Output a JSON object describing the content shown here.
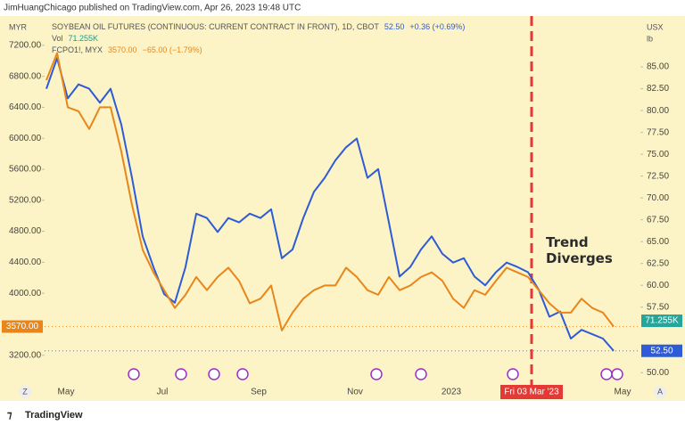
{
  "header": {
    "publisher": "JimHuangChicago published on TradingView.com, Apr 26, 2023 19:48 UTC"
  },
  "footer": {
    "brand": "TradingView"
  },
  "chart_data": {
    "type": "line",
    "y_unit": "MYR",
    "y2_unit": "USX",
    "y2_unit_sub": "lb",
    "volume_label": "Vol",
    "volume_value": "71.255K",
    "annotation": "Trend Diverges",
    "event_label": "Fri 03 Mar '23",
    "buttons": [
      "Z",
      "A"
    ],
    "grid": false,
    "categories": [
      null,
      "May",
      null,
      null,
      null,
      null,
      null,
      null,
      null,
      null,
      "Jul",
      null,
      null,
      null,
      null,
      null,
      null,
      null,
      null,
      "Sep",
      null,
      null,
      null,
      null,
      null,
      null,
      null,
      null,
      "Nov",
      null,
      null,
      null,
      null,
      null,
      null,
      null,
      null,
      "2023",
      null,
      null,
      null,
      null,
      null,
      null,
      null,
      null,
      null,
      null,
      null,
      null,
      null,
      null,
      null,
      "May"
    ],
    "series": [
      {
        "name": "SOYBEAN OIL FUTURES (CONTINUOUS: CURRENT CONTRACT IN FRONT), 1D, CBOT",
        "legend_value": "52.50",
        "legend_change": "+0.36 (+0.69%)",
        "color": "#2e5bd6",
        "axis": "y2",
        "values": [
          82.5,
          86.0,
          81.4,
          83.0,
          82.5,
          80.9,
          82.5,
          78.4,
          72.3,
          65.6,
          62.1,
          59.0,
          58.0,
          62.1,
          68.2,
          67.7,
          66.1,
          67.7,
          67.2,
          68.2,
          67.7,
          68.7,
          63.1,
          64.1,
          67.7,
          70.7,
          72.3,
          74.3,
          75.8,
          76.8,
          72.3,
          73.3,
          67.2,
          61.0,
          62.1,
          64.1,
          65.6,
          63.6,
          62.6,
          63.1,
          61.0,
          60.0,
          61.5,
          62.6,
          62.1,
          61.5,
          59.5,
          56.4,
          57.0,
          53.9,
          54.9,
          54.4,
          53.9,
          52.5
        ]
      },
      {
        "name": "FCPO1!, MYX",
        "legend_value": "3570.00",
        "legend_change": "−65.00 (−1.79%)",
        "color": "#e8861c",
        "axis": "y",
        "values": [
          6750,
          7100,
          6400,
          6350,
          6120,
          6400,
          6400,
          5830,
          5140,
          4560,
          4270,
          4040,
          3810,
          3980,
          4210,
          4040,
          4210,
          4330,
          4160,
          3870,
          3930,
          4100,
          3520,
          3750,
          3930,
          4040,
          4100,
          4100,
          4330,
          4210,
          4040,
          3980,
          4210,
          4040,
          4100,
          4210,
          4270,
          4160,
          3930,
          3810,
          4040,
          3980,
          4160,
          4330,
          4270,
          4210,
          4040,
          3870,
          3750,
          3750,
          3930,
          3810,
          3750,
          3570
        ]
      }
    ],
    "ylim": [
      2840,
      7440
    ],
    "yticks": [
      {
        "value": 3200,
        "label": "3200.00"
      },
      {
        "value": 4000,
        "label": "4000.00"
      },
      {
        "value": 4400,
        "label": "4400.00"
      },
      {
        "value": 4800,
        "label": "4800.00"
      },
      {
        "value": 5200,
        "label": "5200.00"
      },
      {
        "value": 5600,
        "label": "5600.00"
      },
      {
        "value": 6000,
        "label": "6000.00"
      },
      {
        "value": 6400,
        "label": "6400.00"
      },
      {
        "value": 6800,
        "label": "6800.00"
      },
      {
        "value": 7200,
        "label": "7200.00"
      }
    ],
    "y2lim": [
      48.8,
      89.6
    ],
    "y2ticks": [
      {
        "value": 50,
        "label": "50.00"
      },
      {
        "value": 57.5,
        "label": "57.50"
      },
      {
        "value": 60,
        "label": "60.00"
      },
      {
        "value": 62.5,
        "label": "62.50"
      },
      {
        "value": 65,
        "label": "65.00"
      },
      {
        "value": 67.5,
        "label": "67.50"
      },
      {
        "value": 70,
        "label": "70.00"
      },
      {
        "value": 72.5,
        "label": "72.50"
      },
      {
        "value": 75,
        "label": "75.00"
      },
      {
        "value": 77.5,
        "label": "77.50"
      },
      {
        "value": 80,
        "label": "80.00"
      },
      {
        "value": 82.5,
        "label": "82.50"
      },
      {
        "value": 85,
        "label": "85.00"
      }
    ]
  }
}
